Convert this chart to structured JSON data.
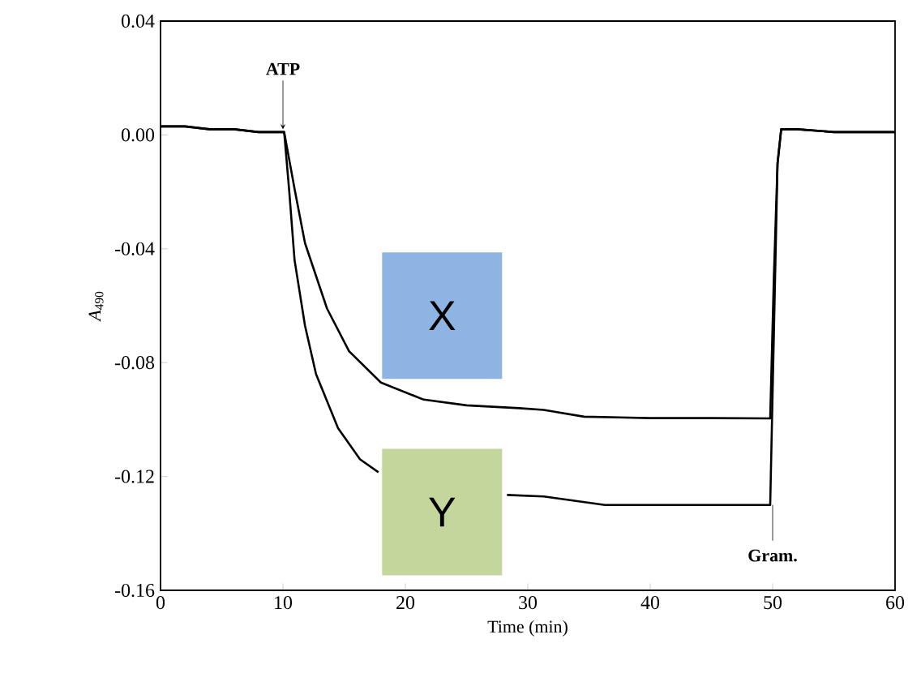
{
  "chart_data": {
    "type": "line",
    "xlabel": "Time (min)",
    "ylabel": "*A*$_{490}$",
    "xlim": [
      0,
      60
    ],
    "ylim": [
      -0.16,
      0.04
    ],
    "xticks": [
      0,
      10,
      20,
      30,
      40,
      50,
      60
    ],
    "yticks": [
      {
        "value": 0.04,
        "label": "0.04"
      },
      {
        "value": 0,
        "label": "0.00"
      },
      {
        "value": -0.04,
        "label": "-0.04"
      },
      {
        "value": -0.08,
        "label": "-0.08"
      },
      {
        "value": -0.12,
        "label": "-0.12"
      },
      {
        "value": -0.16,
        "label": "-0.16"
      }
    ],
    "series": [
      {
        "name": "X",
        "color": "#000000",
        "x": [
          0,
          2,
          4,
          6,
          8,
          10.1,
          10.95,
          11.8,
          13.6,
          15.4,
          18.0,
          21.5,
          25,
          29.3,
          31.3,
          34.6,
          40,
          45,
          49.8,
          50.1,
          50.4,
          50.7,
          52,
          55,
          58,
          60
        ],
        "values": [
          0.003,
          0.003,
          0.002,
          0.002,
          0.001,
          0.001,
          -0.019,
          -0.038,
          -0.061,
          -0.076,
          -0.087,
          -0.093,
          -0.095,
          -0.096,
          -0.0966,
          -0.099,
          -0.0995,
          -0.0995,
          -0.0996,
          -0.05,
          -0.01,
          0.002,
          0.002,
          0.001,
          0.001,
          0.001
        ]
      },
      {
        "name": "Y",
        "color": "#000000",
        "x": [
          0,
          2,
          4,
          6,
          8,
          10.1,
          10.5,
          10.95,
          11.8,
          12.7,
          14.5,
          16.3,
          17.8,
          22,
          26,
          28.3,
          31.3,
          36.3,
          40,
          45,
          49.8,
          50.1,
          50.4,
          50.7,
          52,
          55,
          58,
          60
        ],
        "values": [
          0.003,
          0.003,
          0.002,
          0.002,
          0.001,
          0.001,
          -0.019,
          -0.044,
          -0.067,
          -0.084,
          -0.103,
          -0.114,
          -0.1185,
          null,
          null,
          -0.1265,
          -0.127,
          -0.13,
          -0.13,
          -0.13,
          -0.13,
          -0.07,
          -0.01,
          0.002,
          0.002,
          0.001,
          0.001,
          0.001
        ]
      }
    ],
    "annotations": [
      {
        "text": "ATP",
        "x": 10,
        "y": 0.002
      },
      {
        "text": "Gram.",
        "x": 50,
        "y": -0.13
      }
    ]
  }
}
